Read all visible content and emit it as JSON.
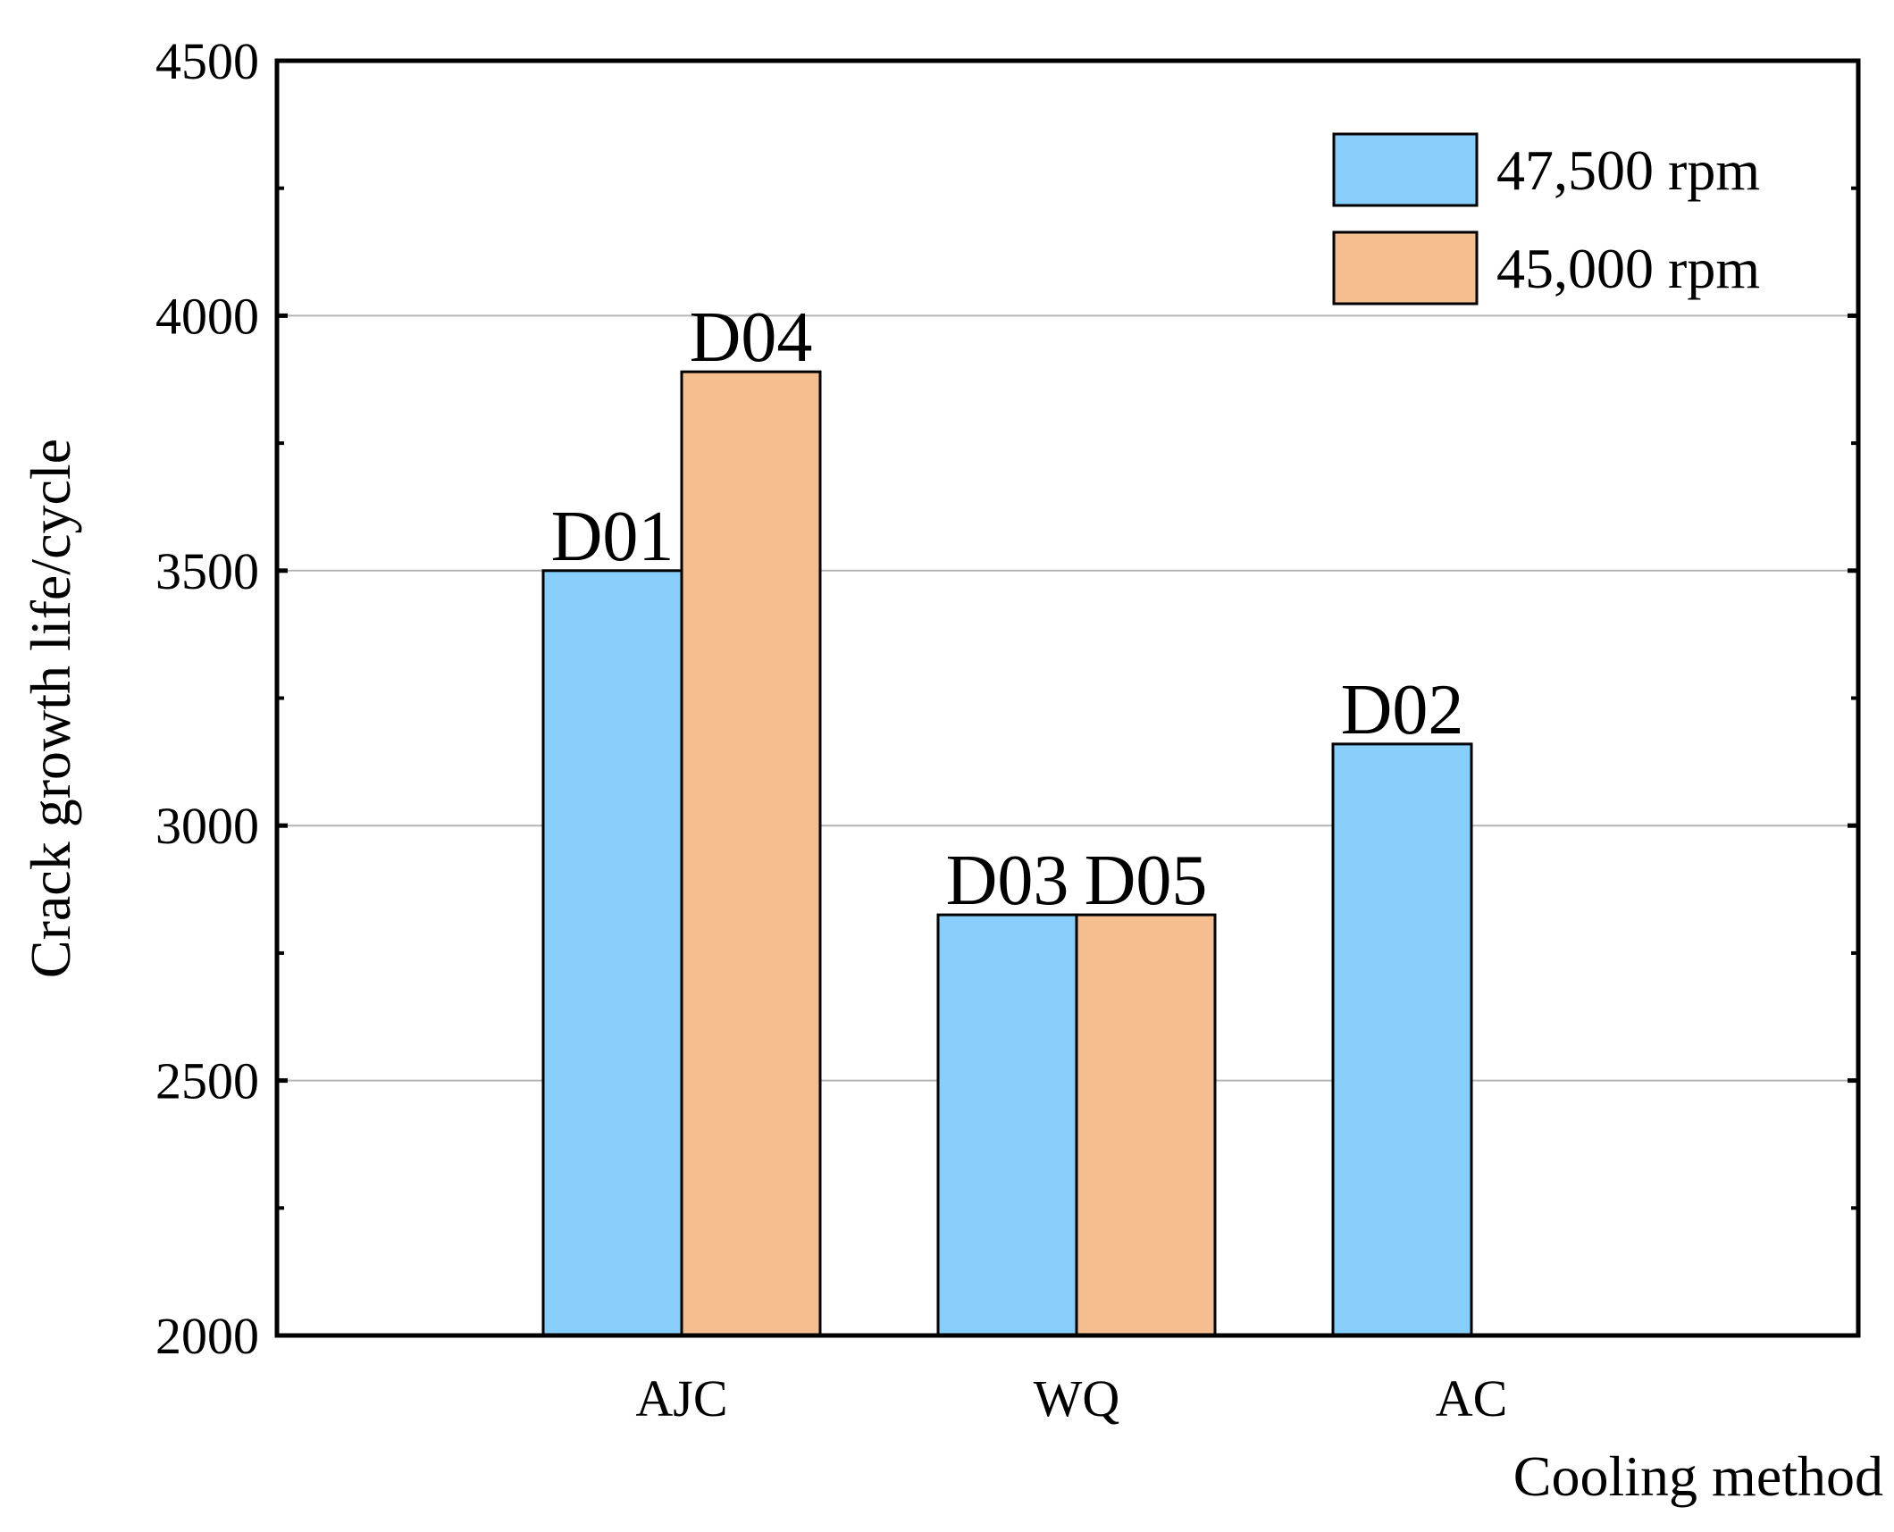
{
  "chart_data": {
    "type": "bar",
    "title": "",
    "xlabel": "Cooling method",
    "ylabel": "Crack growth life/cycle",
    "categories": [
      "AJC",
      "WQ",
      "AC"
    ],
    "ylim": [
      2000,
      4500
    ],
    "yticks": [
      2000,
      2500,
      3000,
      3500,
      4000,
      4500
    ],
    "grid": true,
    "legend_position": "top-right",
    "series": [
      {
        "name": "47,500 rpm",
        "color": "#87CEFA",
        "values": [
          3500,
          2825,
          3160
        ],
        "labels": [
          "D01",
          "D03",
          "D02"
        ]
      },
      {
        "name": "45,000 rpm",
        "color": "#F5BE8F",
        "values": [
          3890,
          2825,
          null
        ],
        "labels": [
          "D04",
          "D05",
          ""
        ]
      }
    ]
  }
}
